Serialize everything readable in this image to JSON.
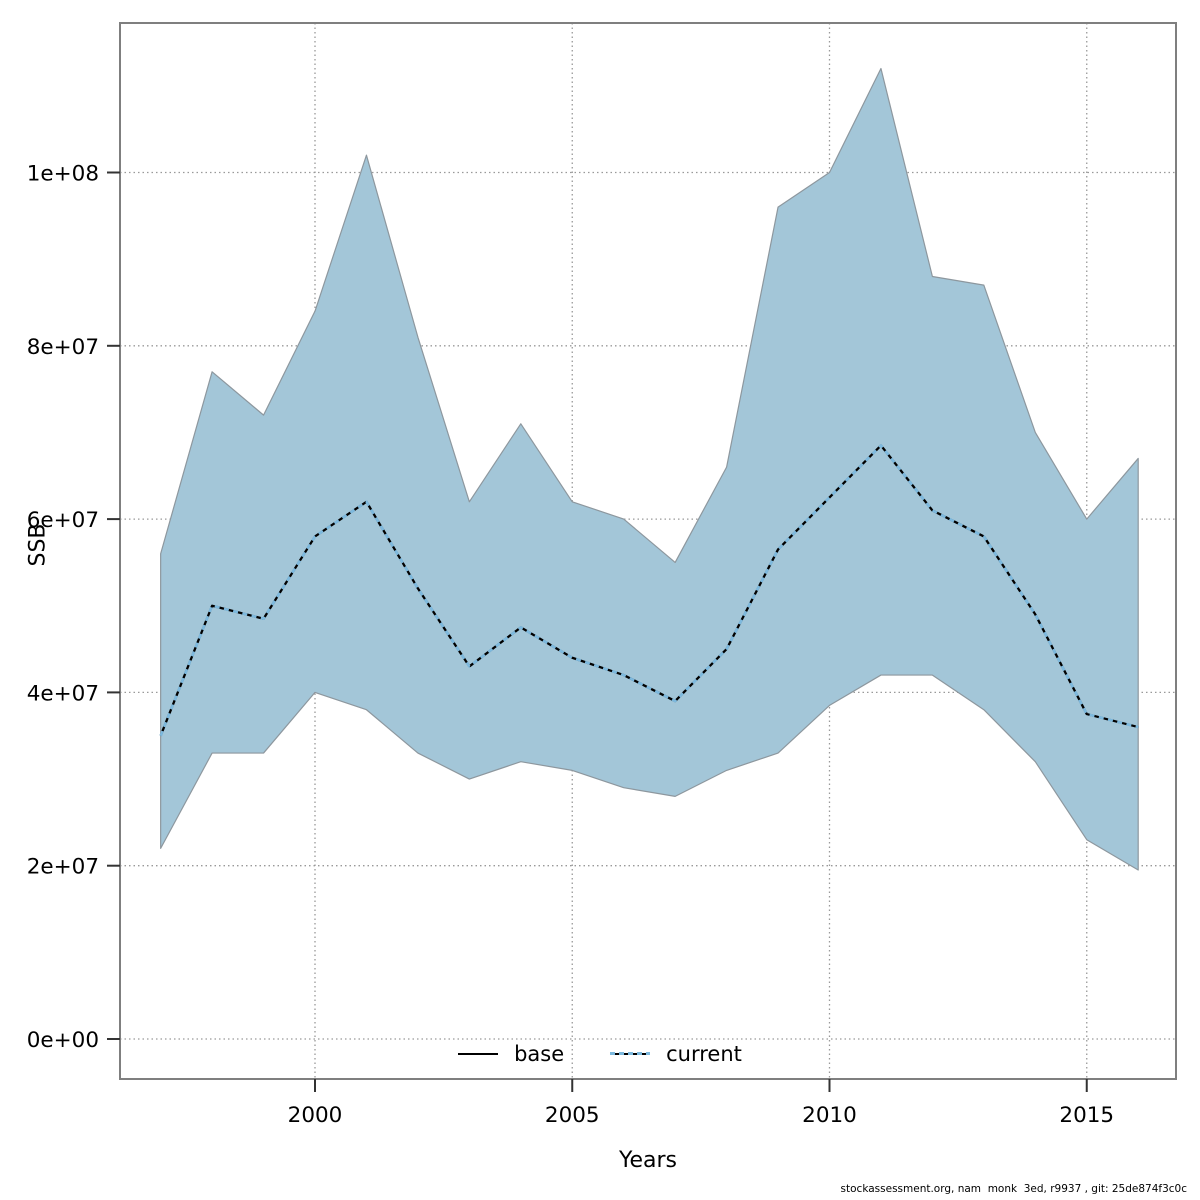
{
  "chart_data": {
    "type": "line",
    "title": "",
    "xlabel": "Years",
    "ylabel": "SSB",
    "x": [
      1997,
      1998,
      1999,
      2000,
      2001,
      2002,
      2003,
      2004,
      2005,
      2006,
      2007,
      2008,
      2009,
      2010,
      2011,
      2012,
      2013,
      2014,
      2015,
      2016
    ],
    "series": [
      {
        "name": "base",
        "style": "solid",
        "color": "#000000",
        "values": [
          35000000.0,
          50000000.0,
          48500000.0,
          58000000.0,
          62000000.0,
          52000000.0,
          43000000.0,
          47500000.0,
          44000000.0,
          42000000.0,
          39000000.0,
          45000000.0,
          56500000.0,
          62500000.0,
          68500000.0,
          61000000.0,
          58000000.0,
          49000000.0,
          37500000.0,
          36000000.0
        ]
      },
      {
        "name": "current",
        "style": "dashed",
        "color": "#7db9de",
        "values": [
          35000000.0,
          50000000.0,
          48500000.0,
          58000000.0,
          62000000.0,
          52000000.0,
          43000000.0,
          47500000.0,
          44000000.0,
          42000000.0,
          39000000.0,
          45000000.0,
          56500000.0,
          62500000.0,
          68500000.0,
          61000000.0,
          58000000.0,
          49000000.0,
          37500000.0,
          36000000.0
        ]
      }
    ],
    "ribbon": {
      "name": "confidence-interval",
      "fill": "#a3c6d8",
      "edge": "#8d979e",
      "upper": [
        56000000.0,
        77000000.0,
        72000000.0,
        84000000.0,
        102000000.0,
        81000000.0,
        62000000.0,
        71000000.0,
        62000000.0,
        60000000.0,
        55000000.0,
        66000000.0,
        96000000.0,
        100000000.0,
        112000000.0,
        88000000.0,
        87000000.0,
        70000000.0,
        60000000.0,
        67000000.0
      ],
      "lower": [
        22000000.0,
        33000000.0,
        33000000.0,
        40000000.0,
        38000000.0,
        33000000.0,
        30000000.0,
        32000000.0,
        31000000.0,
        29000000.0,
        28000000.0,
        31000000.0,
        33000000.0,
        38500000.0,
        42000000.0,
        42000000.0,
        38000000.0,
        32000000.0,
        23000000.0,
        19500000.0
      ]
    },
    "ylim": [
      0,
      117300000.0
    ],
    "yticks": {
      "values": [
        0,
        20000000.0,
        40000000.0,
        60000000.0,
        80000000.0,
        100000000.0
      ],
      "labels": [
        "0e+00",
        "2e+07",
        "4e+07",
        "6e+07",
        "8e+07",
        "1e+08"
      ]
    },
    "xticks": {
      "values": [
        2000,
        2005,
        2010,
        2015
      ],
      "labels": [
        "2000",
        "2005",
        "2010",
        "2015"
      ]
    },
    "grid": true,
    "grid_color": "#999999",
    "border_color": "#7f7f7f",
    "tick_color": "#333333",
    "legend_position": "bottom-center"
  },
  "legend": {
    "items": [
      {
        "label": "base"
      },
      {
        "label": "current"
      }
    ]
  },
  "axes": {
    "x_title": "Years",
    "y_title": "SSB"
  },
  "footer": {
    "text": "stockassessment.org, nam  monk  3ed, r9937 , git: 25de874f3c0c"
  }
}
